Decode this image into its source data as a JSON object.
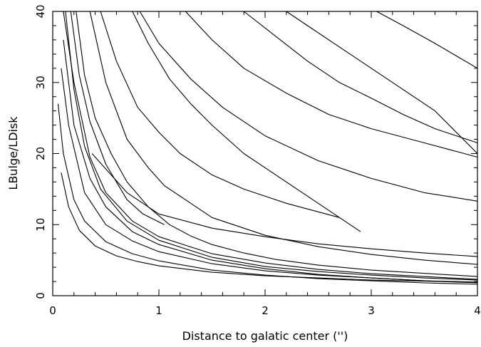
{
  "chart_data": {
    "type": "line",
    "title": "",
    "xlabel": "Distance to galatic center ('')",
    "ylabel": "LBulge/LDisk",
    "xlim": [
      0,
      4
    ],
    "ylim": [
      0,
      40
    ],
    "x_ticks": [
      "0",
      "1",
      "2",
      "3",
      "4"
    ],
    "y_ticks": [
      "0",
      "10",
      "20",
      "30",
      "40"
    ],
    "grid": false,
    "legend": "none",
    "line_color": "#000000",
    "series": [
      {
        "x": [
          0.08,
          0.15,
          0.25,
          0.4,
          0.6,
          0.8,
          1,
          1.5,
          2,
          2.5,
          3,
          3.5,
          4
        ],
        "y": [
          17.3,
          12.5,
          9.2,
          7.0,
          5.6,
          4.8,
          4.2,
          3.3,
          2.8,
          2.5,
          2.2,
          2.05,
          1.9
        ]
      },
      {
        "x": [
          0.05,
          0.1,
          0.2,
          0.3,
          0.5,
          0.75,
          1,
          1.5,
          2,
          2.5,
          3,
          3.5,
          4
        ],
        "y": [
          27,
          20,
          13.5,
          10.5,
          7.6,
          5.9,
          4.9,
          3.6,
          2.9,
          2.4,
          2.1,
          1.8,
          1.6
        ]
      },
      {
        "x": [
          0.08,
          0.15,
          0.3,
          0.5,
          0.75,
          1,
          1.5,
          2,
          2.5,
          3,
          3.5,
          4
        ],
        "y": [
          32,
          24,
          14.5,
          10,
          7.7,
          6.2,
          4.5,
          3.5,
          2.9,
          2.5,
          2.1,
          1.8
        ]
      },
      {
        "x": [
          0.1,
          0.2,
          0.35,
          0.5,
          0.75,
          1,
          1.5,
          2,
          2.5,
          3,
          3.5,
          4
        ],
        "y": [
          36,
          24,
          16.5,
          12.5,
          9,
          7.2,
          5.0,
          3.8,
          3.0,
          2.5,
          2.1,
          1.9
        ]
      },
      {
        "x": [
          0.12,
          0.2,
          0.3,
          0.45,
          0.7,
          1,
          1.5,
          2,
          2.5,
          3,
          3.5,
          4
        ],
        "y": [
          40,
          29,
          21,
          15,
          10.5,
          7.8,
          5.4,
          4.1,
          3.4,
          2.9,
          2.5,
          2.2
        ]
      },
      {
        "x": [
          0.1,
          0.2,
          0.35,
          0.5,
          0.75,
          1,
          1.5,
          2,
          2.5,
          3,
          3.5,
          4
        ],
        "y": [
          40,
          30,
          19.5,
          14.5,
          10.5,
          8.3,
          5.9,
          4.6,
          3.7,
          3.1,
          2.7,
          2.3
        ]
      },
      {
        "x": [
          0.17,
          0.25,
          0.35,
          0.5,
          0.7,
          0.85,
          1.05
        ],
        "y": [
          40,
          31,
          24.5,
          18.5,
          13.5,
          11.5,
          10
        ]
      },
      {
        "x": [
          0.22,
          0.3,
          0.4,
          0.55,
          0.7,
          0.9,
          1.1,
          1.3,
          1.5,
          1.8,
          2.1,
          2.5,
          3,
          4
        ],
        "y": [
          40,
          31,
          25,
          20,
          16,
          12.5,
          10,
          8.4,
          7.2,
          6.0,
          5.1,
          4.3,
          3.6,
          2.7
        ]
      },
      {
        "x": [
          0.35,
          0.5,
          0.7,
          0.9,
          1.05,
          1.5,
          2,
          2.5,
          3,
          3.5,
          4
        ],
        "y": [
          40,
          30,
          22,
          18,
          15.5,
          11,
          8.5,
          6.9,
          5.8,
          5.0,
          4.4
        ]
      },
      {
        "x": [
          0.37,
          0.7,
          1.0,
          1.5,
          2,
          2.5,
          3,
          3.5,
          4
        ],
        "y": [
          20,
          14.5,
          11.5,
          9.5,
          8.3,
          7.3,
          6.6,
          6.0,
          5.5
        ]
      },
      {
        "x": [
          0.45,
          0.6,
          0.8,
          1.0,
          1.2,
          1.5,
          1.8,
          2.2,
          2.7
        ],
        "y": [
          40,
          33,
          26.5,
          23,
          20,
          17,
          15,
          13,
          11
        ]
      },
      {
        "x": [
          0.75,
          0.9,
          1.1,
          1.3,
          1.5,
          1.8,
          2.1,
          2.5,
          2.9
        ],
        "y": [
          40,
          35.5,
          30.5,
          27,
          24,
          20,
          17,
          13,
          9
        ]
      },
      {
        "x": [
          0.82,
          1.0,
          1.3,
          1.6,
          2,
          2.5,
          3,
          3.5,
          4
        ],
        "y": [
          40,
          35.5,
          30.5,
          26.5,
          22.5,
          19,
          16.5,
          14.5,
          13.3
        ]
      },
      {
        "x": [
          1.25,
          1.5,
          1.8,
          2.2,
          2.6,
          3,
          3.5,
          4
        ],
        "y": [
          40,
          36,
          32,
          28.5,
          25.5,
          23.5,
          21.5,
          19.5
        ]
      },
      {
        "x": [
          1.8,
          2.1,
          2.4,
          2.7,
          3,
          3.3,
          3.6,
          4
        ],
        "y": [
          40,
          36.5,
          33,
          30,
          27.8,
          25.5,
          23.5,
          21.5
        ]
      },
      {
        "x": [
          2.2,
          2.4,
          2.7,
          3,
          3.3,
          3.6,
          4
        ],
        "y": [
          40,
          38,
          35,
          32,
          29,
          26,
          20
        ]
      },
      {
        "x": [
          3.05,
          3.3,
          3.6,
          4
        ],
        "y": [
          40,
          38,
          35.5,
          32
        ]
      }
    ]
  }
}
